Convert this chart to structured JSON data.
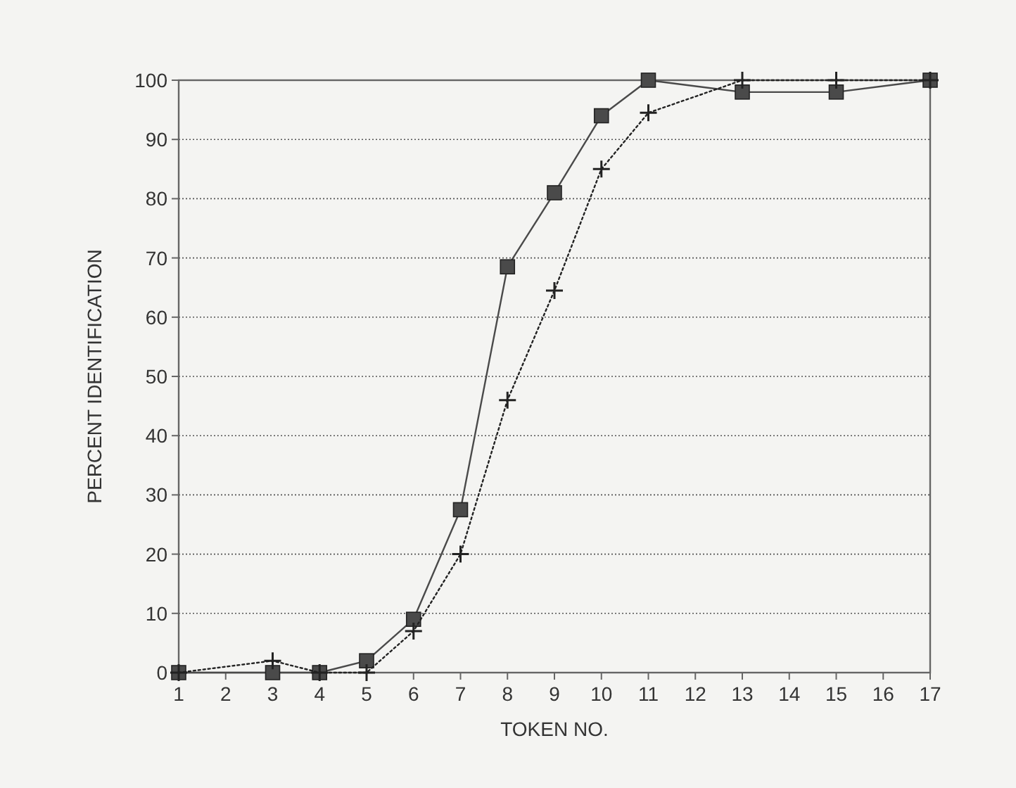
{
  "chart_data": {
    "type": "line",
    "xlabel": "TOKEN NO.",
    "ylabel": "PERCENT IDENTIFICATION",
    "x": [
      1,
      3,
      4,
      5,
      6,
      7,
      8,
      9,
      10,
      11,
      13,
      15,
      17
    ],
    "xlim": [
      1,
      17
    ],
    "xticks": [
      1,
      2,
      3,
      4,
      5,
      6,
      7,
      8,
      9,
      10,
      11,
      12,
      13,
      14,
      15,
      16,
      17
    ],
    "ylim": [
      0,
      100
    ],
    "yticks": [
      0,
      10,
      20,
      30,
      40,
      50,
      60,
      70,
      80,
      90,
      100
    ],
    "grid": "y",
    "series": [
      {
        "color": "#4a4a4a",
        "marker": "square",
        "line_style": "solid",
        "values": [
          0,
          0,
          0,
          2,
          9,
          27.5,
          68.5,
          81,
          94,
          100,
          98,
          98,
          100
        ]
      },
      {
        "color": "#222222",
        "marker": "cross",
        "line_style": "dotted",
        "values": [
          0,
          2,
          0,
          0,
          7,
          20,
          46,
          64.5,
          85,
          94.5,
          100,
          100,
          100
        ]
      }
    ]
  }
}
